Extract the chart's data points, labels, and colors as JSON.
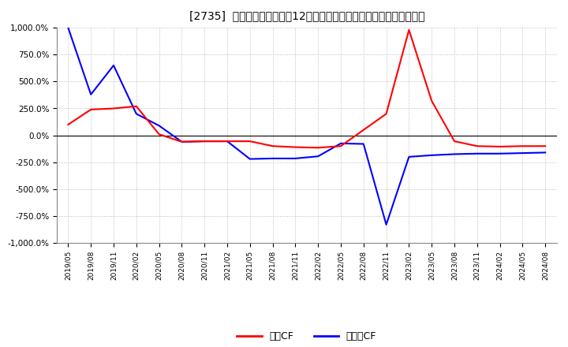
{
  "title": "[2735]  キャッシュフローの12か月移動合計の対前年同期増減率の推移",
  "ylim": [
    -1000,
    1000
  ],
  "yticks": [
    -1000,
    -750,
    -500,
    -250,
    0,
    250,
    500,
    750,
    1000
  ],
  "background_color": "#ffffff",
  "grid_color": "#999999",
  "legend_labels": [
    "営業CF",
    "フリーCF"
  ],
  "line_colors": [
    "#ff0000",
    "#0000ff"
  ],
  "x_labels": [
    "2019/05",
    "2019/08",
    "2019/11",
    "2020/02",
    "2020/05",
    "2020/08",
    "2020/11",
    "2021/02",
    "2021/05",
    "2021/08",
    "2021/11",
    "2022/02",
    "2022/05",
    "2022/08",
    "2022/11",
    "2023/02",
    "2023/05",
    "2023/08",
    "2023/11",
    "2024/02",
    "2024/05",
    "2024/08"
  ],
  "operating_cf": [
    100,
    240,
    250,
    270,
    10,
    -60,
    -55,
    -55,
    -55,
    -100,
    -110,
    -115,
    -100,
    50,
    200,
    980,
    320,
    -55,
    -100,
    -105,
    -100,
    -100
  ],
  "free_cf": [
    1000,
    380,
    650,
    200,
    90,
    -60,
    -55,
    -55,
    -220,
    -215,
    -215,
    -195,
    -75,
    -80,
    -830,
    -200,
    -185,
    -175,
    -170,
    -170,
    -165,
    -160
  ]
}
